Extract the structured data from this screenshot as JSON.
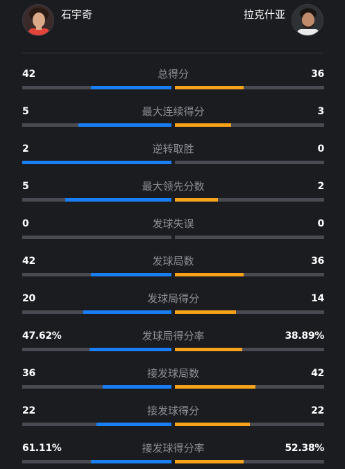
{
  "players": {
    "left": {
      "name": "石宇奇"
    },
    "right": {
      "name": "拉克什亚"
    }
  },
  "colors": {
    "left_bar": "#1a7ef5",
    "right_bar": "#f7a21b",
    "track": "#4a4b52"
  },
  "stats": [
    {
      "label": "总得分",
      "left": "42",
      "right": "36",
      "left_share": 0.54,
      "right_share": 0.46
    },
    {
      "label": "最大连续得分",
      "left": "5",
      "right": "3",
      "left_share": 0.625,
      "right_share": 0.375
    },
    {
      "label": "逆转取胜",
      "left": "2",
      "right": "0",
      "left_share": 1.0,
      "right_share": 0.0
    },
    {
      "label": "最大领先分数",
      "left": "5",
      "right": "2",
      "left_share": 0.71,
      "right_share": 0.29
    },
    {
      "label": "发球失误",
      "left": "0",
      "right": "0",
      "left_share": 0.0,
      "right_share": 0.0
    },
    {
      "label": "发球局数",
      "left": "42",
      "right": "36",
      "left_share": 0.54,
      "right_share": 0.46
    },
    {
      "label": "发球局得分",
      "left": "20",
      "right": "14",
      "left_share": 0.59,
      "right_share": 0.41
    },
    {
      "label": "发球局得分率",
      "left": "47.62%",
      "right": "38.89%",
      "left_share": 0.55,
      "right_share": 0.45
    },
    {
      "label": "接发球局数",
      "left": "36",
      "right": "42",
      "left_share": 0.46,
      "right_share": 0.54
    },
    {
      "label": "接发球得分",
      "left": "22",
      "right": "22",
      "left_share": 0.5,
      "right_share": 0.5
    },
    {
      "label": "接发球得分率",
      "left": "61.11%",
      "right": "52.38%",
      "left_share": 0.54,
      "right_share": 0.46
    }
  ]
}
